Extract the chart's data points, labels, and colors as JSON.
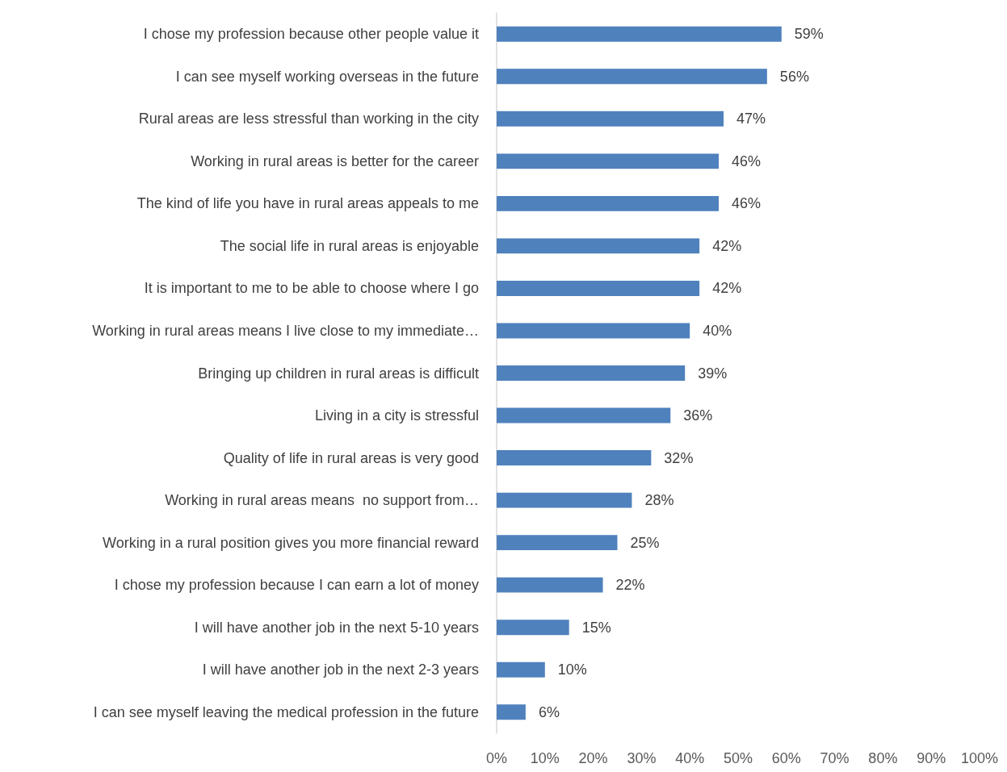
{
  "chart_data": {
    "type": "bar",
    "orientation": "horizontal",
    "categories": [
      "I chose my profession because other people value it",
      "I can see myself working overseas in the future",
      "Rural areas are less stressful than working in the city",
      "Working in rural areas is better for the career",
      "The kind of life you have in rural areas appeals to me",
      "The social life in rural areas is enjoyable",
      "It is important to me to be able to choose where I go",
      "Working in rural areas means I live close to my immediate…",
      "Bringing up children in rural areas is difficult",
      "Living in a city is stressful",
      "Quality of life in rural areas is very good",
      "Working in rural areas means  no support from…",
      "Working in a rural position gives you more financial reward",
      "I chose my profession because I can earn a lot of money",
      "I will have another job in the next 5-10 years",
      "I will have another job in the next 2-3 years",
      "I can see myself leaving the medical profession in the future"
    ],
    "values": [
      59,
      56,
      47,
      46,
      46,
      42,
      42,
      40,
      39,
      36,
      32,
      28,
      25,
      22,
      15,
      10,
      6
    ],
    "value_labels": [
      "59%",
      "56%",
      "47%",
      "46%",
      "46%",
      "42%",
      "42%",
      "40%",
      "39%",
      "36%",
      "32%",
      "28%",
      "25%",
      "22%",
      "15%",
      "10%",
      "6%"
    ],
    "color": "#4f81bd",
    "xlim": [
      0,
      100
    ],
    "xticks": [
      {
        "value": 0,
        "label": "0%"
      },
      {
        "value": 10,
        "label": "10%"
      },
      {
        "value": 20,
        "label": "20%"
      },
      {
        "value": 30,
        "label": "30%"
      },
      {
        "value": 40,
        "label": "40%"
      },
      {
        "value": 50,
        "label": "50%"
      },
      {
        "value": 60,
        "label": "60%"
      },
      {
        "value": 70,
        "label": "70%"
      },
      {
        "value": 80,
        "label": "80%"
      },
      {
        "value": 90,
        "label": "90%"
      },
      {
        "value": 100,
        "label": "100%"
      }
    ],
    "grid": false
  }
}
